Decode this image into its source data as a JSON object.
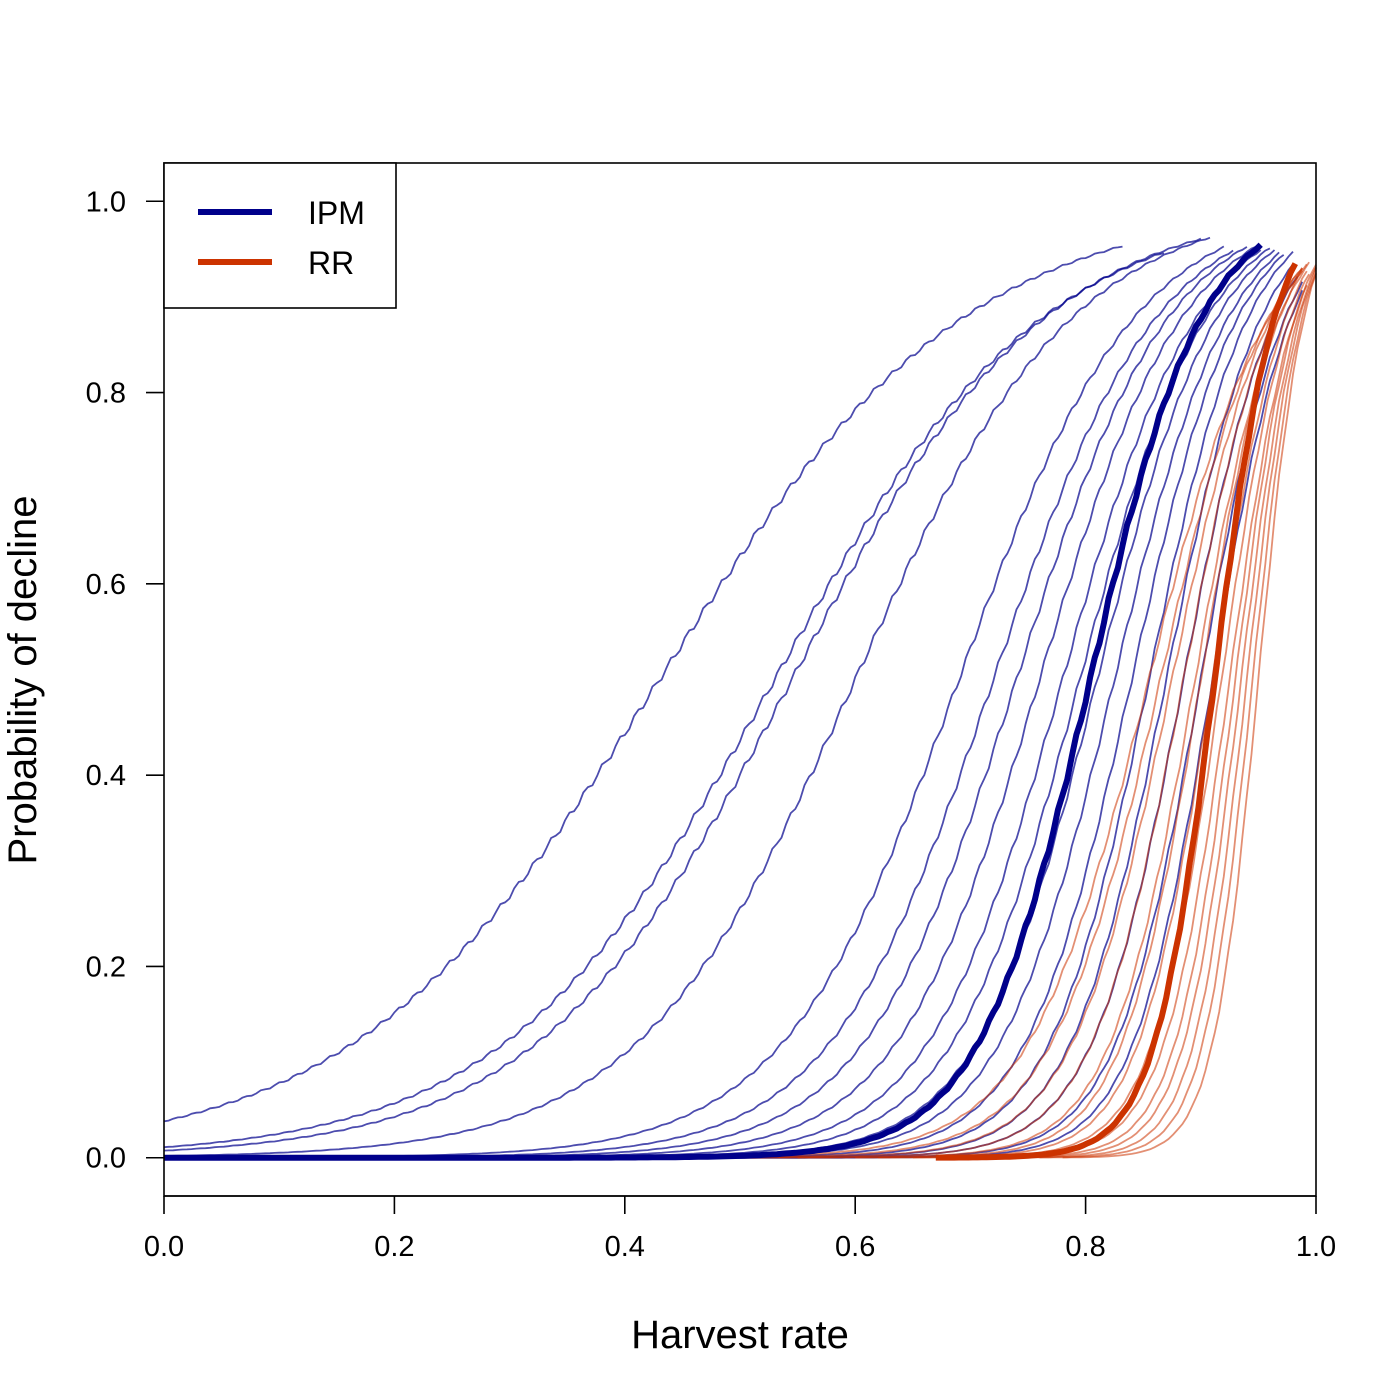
{
  "chart_data": {
    "type": "line",
    "xlabel": "Harvest rate",
    "ylabel": "Probability of decline",
    "xlim": [
      0,
      1
    ],
    "ylim": [
      -0.04,
      1.04
    ],
    "xticks": [
      0.0,
      0.2,
      0.4,
      0.6,
      0.8,
      1.0
    ],
    "yticks": [
      0.0,
      0.2,
      0.4,
      0.6,
      0.8,
      1.0
    ],
    "xtick_labels": [
      "0.0",
      "0.2",
      "0.4",
      "0.6",
      "0.8",
      "1.0"
    ],
    "ytick_labels": [
      "0.0",
      "0.2",
      "0.4",
      "0.6",
      "0.8",
      "1.0"
    ],
    "grid": false,
    "legend": {
      "position": "top-left",
      "entries": [
        {
          "label": "IPM",
          "color": "#00008B"
        },
        {
          "label": "RR",
          "color": "#CC3300"
        }
      ]
    },
    "colors": {
      "IPM": "#00008B",
      "RR": "#CC3300"
    },
    "groups": [
      {
        "name": "IPM",
        "color": "#00008B",
        "summary": {
          "x0": 0.0,
          "x1": 0.955,
          "midpoint": 0.804,
          "steepness": 20.5
        },
        "replicates": [
          {
            "x0": 0.0,
            "x1": 0.835,
            "midpoint": 0.43,
            "steepness": 7.5
          },
          {
            "x0": 0.0,
            "x1": 0.87,
            "midpoint": 0.53,
            "steepness": 8.5
          },
          {
            "x0": 0.0,
            "x1": 0.9,
            "midpoint": 0.545,
            "steepness": 9.0
          },
          {
            "x0": 0.0,
            "x1": 0.91,
            "midpoint": 0.6,
            "steepness": 10.5
          },
          {
            "x0": 0.0,
            "x1": 0.92,
            "midpoint": 0.69,
            "steepness": 13.0
          },
          {
            "x0": 0.0,
            "x1": 0.93,
            "midpoint": 0.72,
            "steepness": 14.0
          },
          {
            "x0": 0.0,
            "x1": 0.94,
            "midpoint": 0.74,
            "steepness": 15.0
          },
          {
            "x0": 0.0,
            "x1": 0.95,
            "midpoint": 0.76,
            "steepness": 16.0
          },
          {
            "x0": 0.0,
            "x1": 0.955,
            "midpoint": 0.78,
            "steepness": 17.0
          },
          {
            "x0": 0.0,
            "x1": 0.96,
            "midpoint": 0.795,
            "steepness": 18.0
          },
          {
            "x0": 0.0,
            "x1": 0.965,
            "midpoint": 0.81,
            "steepness": 19.0
          },
          {
            "x0": 0.0,
            "x1": 0.97,
            "midpoint": 0.825,
            "steepness": 20.0
          },
          {
            "x0": 0.0,
            "x1": 0.975,
            "midpoint": 0.84,
            "steepness": 21.5
          },
          {
            "x0": 0.0,
            "x1": 0.98,
            "midpoint": 0.855,
            "steepness": 23.0
          },
          {
            "x0": 0.0,
            "x1": 0.98,
            "midpoint": 0.87,
            "steepness": 24.0
          },
          {
            "x0": 0.0,
            "x1": 0.985,
            "midpoint": 0.885,
            "steepness": 25.0
          },
          {
            "x0": 0.0,
            "x1": 0.99,
            "midpoint": 0.9,
            "steepness": 27.0
          },
          {
            "x0": 0.0,
            "x1": 0.99,
            "midpoint": 0.91,
            "steepness": 29.0
          }
        ]
      },
      {
        "name": "RR",
        "color": "#CC3300",
        "summary": {
          "x0": 0.67,
          "x1": 0.985,
          "midpoint": 0.912,
          "steepness": 38.0
        },
        "replicates": [
          {
            "x0": 0.26,
            "x1": 0.99,
            "midpoint": 0.855,
            "steepness": 19.0
          },
          {
            "x0": 0.3,
            "x1": 0.99,
            "midpoint": 0.865,
            "steepness": 21.0
          },
          {
            "x0": 0.4,
            "x1": 0.99,
            "midpoint": 0.875,
            "steepness": 23.0
          },
          {
            "x0": 0.5,
            "x1": 0.99,
            "midpoint": 0.885,
            "steepness": 25.0
          },
          {
            "x0": 0.55,
            "x1": 0.995,
            "midpoint": 0.895,
            "steepness": 27.0
          },
          {
            "x0": 0.6,
            "x1": 0.995,
            "midpoint": 0.9,
            "steepness": 29.0
          },
          {
            "x0": 0.62,
            "x1": 0.995,
            "midpoint": 0.91,
            "steepness": 31.0
          },
          {
            "x0": 0.65,
            "x1": 0.995,
            "midpoint": 0.918,
            "steepness": 33.0
          },
          {
            "x0": 0.68,
            "x1": 0.995,
            "midpoint": 0.925,
            "steepness": 35.0
          },
          {
            "x0": 0.7,
            "x1": 1.0,
            "midpoint": 0.93,
            "steepness": 38.0
          },
          {
            "x0": 0.72,
            "x1": 1.0,
            "midpoint": 0.935,
            "steepness": 40.0
          },
          {
            "x0": 0.74,
            "x1": 1.0,
            "midpoint": 0.94,
            "steepness": 43.0
          },
          {
            "x0": 0.76,
            "x1": 1.0,
            "midpoint": 0.945,
            "steepness": 46.0
          },
          {
            "x0": 0.78,
            "x1": 1.0,
            "midpoint": 0.95,
            "steepness": 50.0
          }
        ]
      }
    ]
  }
}
